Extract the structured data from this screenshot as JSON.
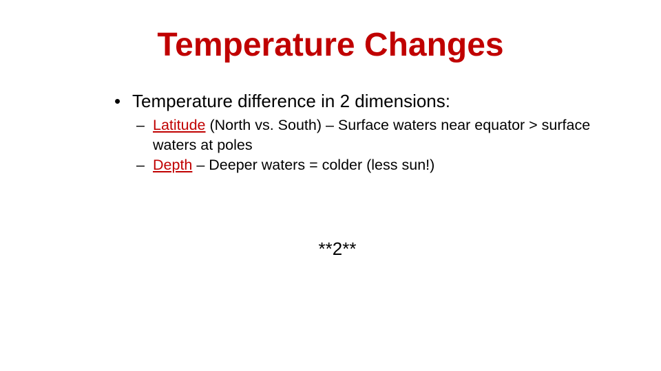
{
  "slide": {
    "title": "Temperature Changes",
    "bullet": "Temperature difference in 2 dimensions:",
    "sub_items": [
      {
        "term": "Latitude",
        "text": " (North vs. South) – Surface waters near equator > surface waters at poles"
      },
      {
        "term": "Depth",
        "text": " – Deeper waters = colder (less sun!)"
      }
    ],
    "note": "**2**",
    "colors": {
      "accent": "#c00000",
      "text": "#000000",
      "background": "#ffffff"
    }
  }
}
